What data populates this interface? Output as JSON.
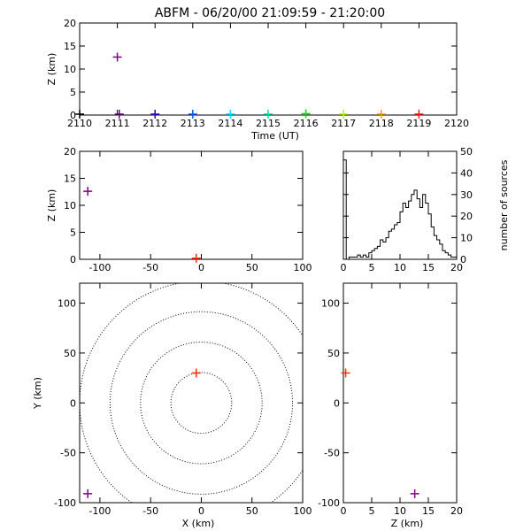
{
  "title": "ABFM - 06/20/00 21:09:59 - 21:20:00",
  "colors": {
    "axes": "#000000",
    "outlier": "#800080",
    "core": "#ff3000",
    "time_palette": [
      "#000000",
      "#6a008a",
      "#3000d8",
      "#0060ff",
      "#00e0ff",
      "#00e0a0",
      "#00e000",
      "#b0ff00",
      "#ffa000",
      "#ff2000"
    ]
  },
  "chart_data": [
    {
      "id": "time-height",
      "type": "scatter",
      "xlabel": "Time (UT)",
      "ylabel": "Z (km)",
      "xlim": [
        0,
        10
      ],
      "ylim": [
        0,
        20
      ],
      "xtick_values": [
        0,
        1,
        2,
        3,
        4,
        5,
        6,
        7,
        8,
        9,
        10
      ],
      "xtick_labels": [
        "2110",
        "2111",
        "2112",
        "2113",
        "2114",
        "2115",
        "2116",
        "2117",
        "2118",
        "2119",
        "2120"
      ],
      "ytick_values": [
        0,
        5,
        10,
        15,
        20
      ],
      "ytick_labels": [
        "0",
        "5",
        "10",
        "15",
        "20"
      ],
      "points": [
        {
          "x": 0.0,
          "y": 0.2,
          "color": "#000000"
        },
        {
          "x": 1.0,
          "y": 12.6,
          "color": "#800080"
        },
        {
          "x": 1.05,
          "y": 0.2,
          "color": "#6a008a"
        },
        {
          "x": 2.0,
          "y": 0.2,
          "color": "#3000d8"
        },
        {
          "x": 3.0,
          "y": 0.2,
          "color": "#0060ff"
        },
        {
          "x": 4.0,
          "y": 0.2,
          "color": "#00e0ff"
        },
        {
          "x": 5.0,
          "y": 0.2,
          "color": "#00e0a0"
        },
        {
          "x": 6.0,
          "y": 0.3,
          "color": "#00e000"
        },
        {
          "x": 7.0,
          "y": 0.2,
          "color": "#b0ff00"
        },
        {
          "x": 8.0,
          "y": 0.2,
          "color": "#ffa000"
        },
        {
          "x": 9.0,
          "y": 0.2,
          "color": "#ff2000"
        }
      ]
    },
    {
      "id": "x-z",
      "type": "scatter",
      "xlabel": "",
      "ylabel": "Z (km)",
      "xlim": [
        -120,
        100
      ],
      "ylim": [
        0,
        20
      ],
      "xtick_values": [
        -100,
        -50,
        0,
        50,
        100
      ],
      "xtick_labels": [
        "-100",
        "-50",
        "0",
        "50",
        "100"
      ],
      "ytick_values": [
        0,
        5,
        10,
        15,
        20
      ],
      "ytick_labels": [
        "0",
        "5",
        "10",
        "15",
        "20"
      ],
      "points": [
        {
          "x": -112,
          "y": 12.6,
          "color": "#800080"
        },
        {
          "x": -5,
          "y": 0.2,
          "color": "#ff3000"
        }
      ]
    },
    {
      "id": "height-histogram",
      "type": "bar",
      "xlabel": "",
      "ylabel": "number of sources",
      "xlim": [
        0,
        20
      ],
      "ylim": [
        0,
        50
      ],
      "xtick_values": [
        0,
        5,
        10,
        15,
        20
      ],
      "xtick_labels": [
        "0",
        "5",
        "10",
        "15",
        "20"
      ],
      "ytick_values": [
        0,
        10,
        20,
        30,
        40,
        50
      ],
      "ytick_labels": [
        "0",
        "10",
        "20",
        "30",
        "40",
        "50"
      ],
      "bin_width": 0.5,
      "counts": [
        46,
        0,
        1,
        1,
        1,
        2,
        1,
        2,
        1,
        3,
        4,
        5,
        6,
        9,
        8,
        10,
        13,
        14,
        16,
        17,
        22,
        26,
        24,
        27,
        30,
        32,
        28,
        24,
        30,
        26,
        21,
        15,
        11,
        9,
        7,
        4,
        3,
        2,
        1,
        1
      ]
    },
    {
      "id": "plan-view",
      "type": "scatter",
      "xlabel": "X (km)",
      "ylabel": "Y (km)",
      "xlim": [
        -120,
        100
      ],
      "ylim": [
        -100,
        120
      ],
      "xtick_values": [
        -100,
        -50,
        0,
        50,
        100
      ],
      "xtick_labels": [
        "-100",
        "-50",
        "0",
        "50",
        "100"
      ],
      "ytick_values": [
        -100,
        -50,
        0,
        50,
        100
      ],
      "ytick_labels": [
        "-100",
        "-50",
        "0",
        "50",
        "100"
      ],
      "range_rings_km": [
        30,
        60,
        90,
        120
      ],
      "points": [
        {
          "x": -112,
          "y": -91,
          "color": "#800080"
        },
        {
          "x": -5,
          "y": 30,
          "color": "#ff3000"
        }
      ]
    },
    {
      "id": "z-y",
      "type": "scatter",
      "xlabel": "Z (km)",
      "ylabel": "",
      "xlim": [
        0,
        20
      ],
      "ylim": [
        -100,
        120
      ],
      "xtick_values": [
        0,
        5,
        10,
        15,
        20
      ],
      "xtick_labels": [
        "0",
        "5",
        "10",
        "15",
        "20"
      ],
      "ytick_values": [
        -100,
        -50,
        0,
        50,
        100
      ],
      "ytick_labels": [
        "-100",
        "-50",
        "0",
        "50",
        "100"
      ],
      "points": [
        {
          "x": 12.6,
          "y": -91,
          "color": "#800080"
        },
        {
          "x": 0.4,
          "y": 30,
          "color": "#ff3000"
        }
      ]
    }
  ]
}
